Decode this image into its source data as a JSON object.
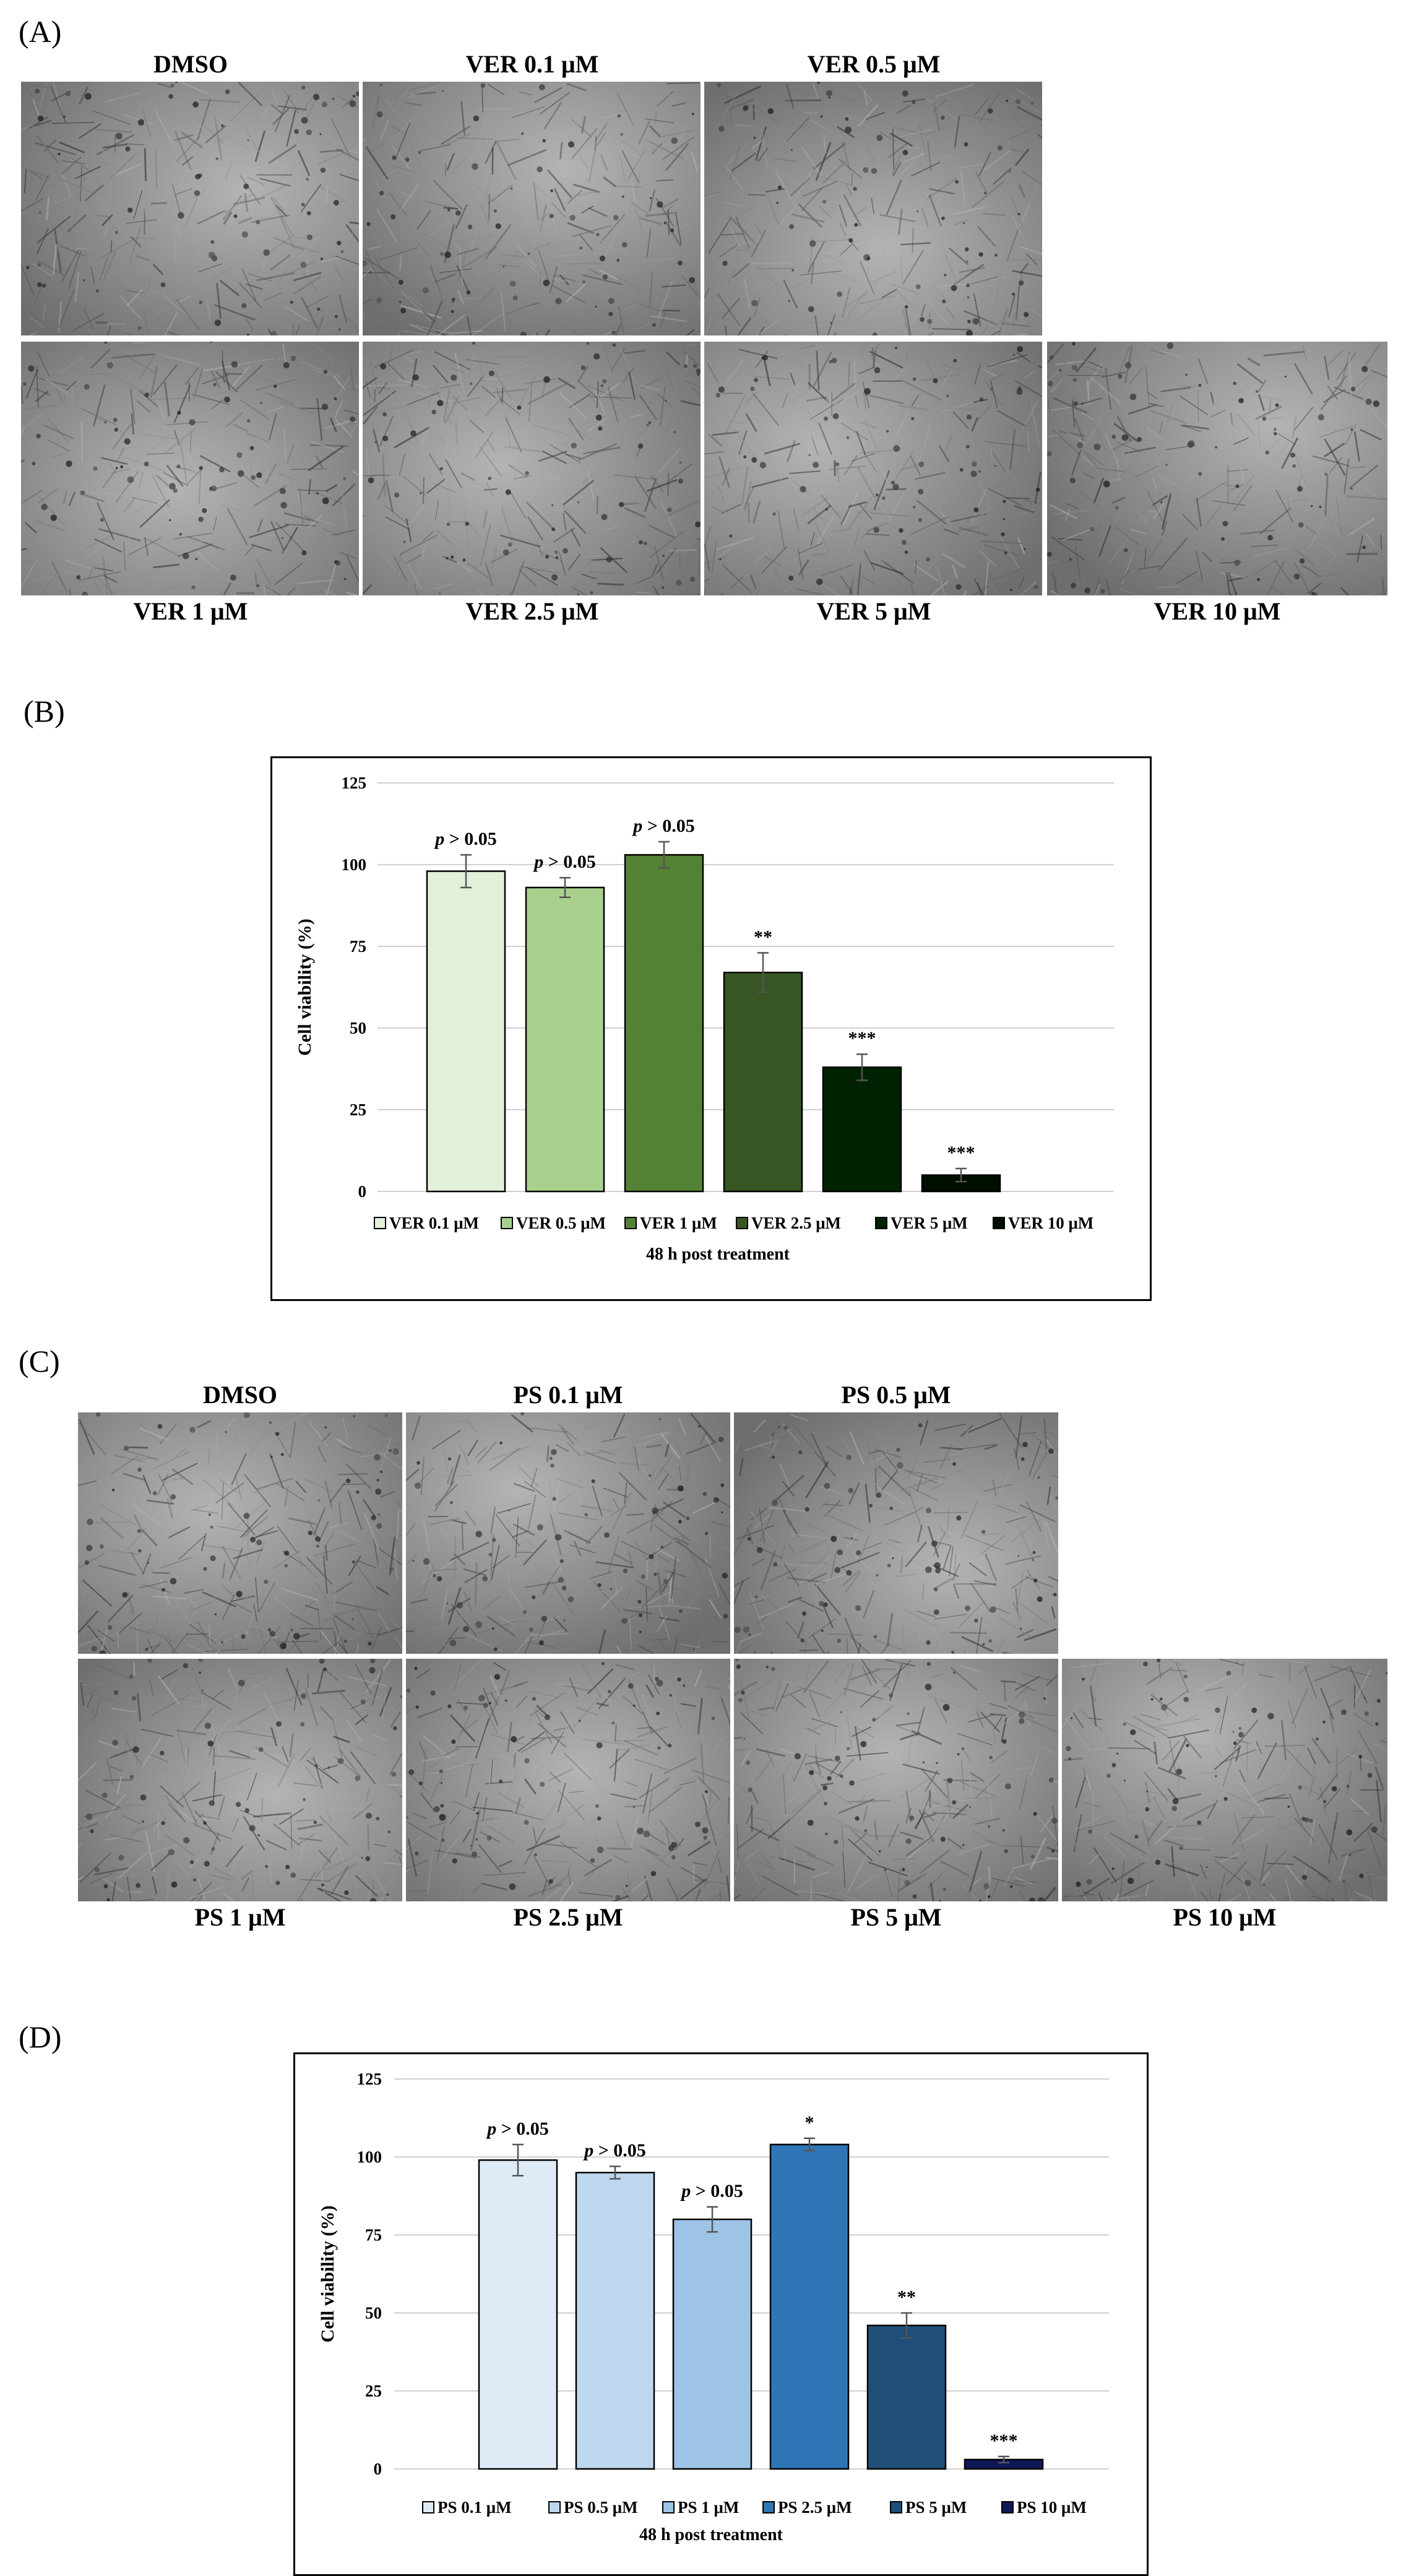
{
  "panels": {
    "A": "(A)",
    "B": "(B)",
    "C": "(C)",
    "D": "(D)"
  },
  "micrographs_A": {
    "top": [
      "DMSO",
      "VER 0.1 μM",
      "VER 0.5 μM"
    ],
    "bottom": [
      "VER 1 μM",
      "VER 2.5 μM",
      "VER 5 μM",
      "VER 10 μM"
    ]
  },
  "micrographs_C": {
    "top": [
      "DMSO",
      "PS 0.1 μM",
      "PS 0.5 μM"
    ],
    "bottom": [
      "PS 1 μM",
      "PS 2.5 μM",
      "PS 5 μM",
      "PS 10 μM"
    ]
  },
  "chart_data": [
    {
      "type": "bar",
      "panel": "B",
      "title": "",
      "xlabel": "48 h post treatment",
      "ylabel": "Cell viability (%)",
      "ylim": [
        0,
        125
      ],
      "yticks": [
        0,
        25,
        50,
        75,
        100,
        125
      ],
      "grid": true,
      "legend_position": "bottom",
      "categories": [
        "VER 0.1 μM",
        "VER 0.5 μM",
        "VER 1 μM",
        "VER 2.5 μM",
        "VER 5 μM",
        "VER 10 μM"
      ],
      "values": [
        98,
        93,
        103,
        67,
        38,
        5
      ],
      "errors": [
        5,
        3,
        4,
        6,
        4,
        2
      ],
      "annotations": [
        "p > 0.05",
        "p > 0.05",
        "p > 0.05",
        "**",
        "***",
        "***"
      ],
      "colors": [
        "#e2efd9",
        "#a9d18e",
        "#548235",
        "#375623",
        "#002200",
        "#000e00"
      ]
    },
    {
      "type": "bar",
      "panel": "D",
      "title": "",
      "xlabel": "48 h post treatment",
      "ylabel": "Cell viability (%)",
      "ylim": [
        0,
        125
      ],
      "yticks": [
        0,
        25,
        50,
        75,
        100,
        125
      ],
      "grid": true,
      "legend_position": "bottom",
      "categories": [
        "PS 0.1 μM",
        "PS 0.5 μM",
        "PS 1 μM",
        "PS 2.5 μM",
        "PS 5 μM",
        "PS 10 μM"
      ],
      "values": [
        99,
        95,
        80,
        104,
        46,
        3
      ],
      "errors": [
        5,
        2,
        4,
        2,
        4,
        1
      ],
      "annotations": [
        "p > 0.05",
        "p > 0.05",
        "p > 0.05",
        "*",
        "**",
        "***"
      ],
      "colors": [
        "#deebf7",
        "#bdd7ee",
        "#9dc3e6",
        "#2e75b6",
        "#1f4e79",
        "#0d1a57"
      ]
    }
  ]
}
